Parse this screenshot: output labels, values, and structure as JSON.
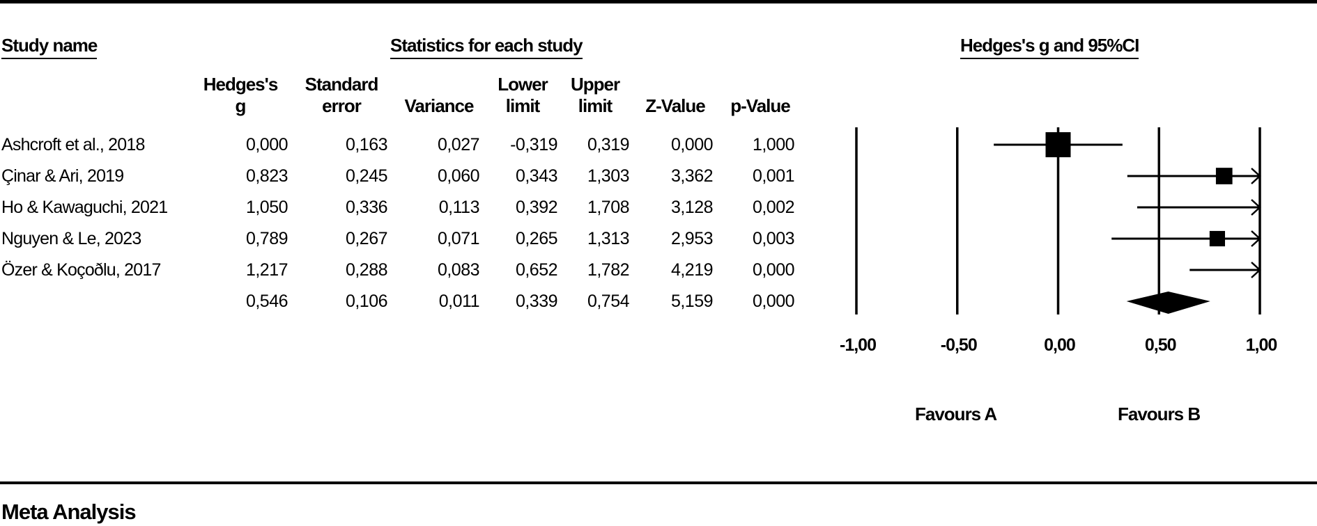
{
  "headers": {
    "study_name": "Study name",
    "statistics": "Statistics for each study",
    "plot_title": "Hedges's g and 95%CI"
  },
  "columns": [
    {
      "line1": "Hedges's",
      "line2": "g"
    },
    {
      "line1": "Standard",
      "line2": "error"
    },
    {
      "line1": "",
      "line2": "Variance"
    },
    {
      "line1": "Lower",
      "line2": "limit"
    },
    {
      "line1": "Upper",
      "line2": "limit"
    },
    {
      "line1": "",
      "line2": "Z-Value"
    },
    {
      "line1": "",
      "line2": "p-Value"
    }
  ],
  "rows": [
    {
      "name": "Ashcroft et al., 2018",
      "g": "0,000",
      "se": "0,163",
      "var": "0,027",
      "lower": "-0,319",
      "upper": "0,319",
      "z": "0,000",
      "p": "1,000"
    },
    {
      "name": "Çinar & Ari, 2019",
      "g": "0,823",
      "se": "0,245",
      "var": "0,060",
      "lower": "0,343",
      "upper": "1,303",
      "z": "3,362",
      "p": "0,001"
    },
    {
      "name": "Ho & Kawaguchi, 2021",
      "g": "1,050",
      "se": "0,336",
      "var": "0,113",
      "lower": "0,392",
      "upper": "1,708",
      "z": "3,128",
      "p": "0,002"
    },
    {
      "name": "Nguyen & Le, 2023",
      "g": "0,789",
      "se": "0,267",
      "var": "0,071",
      "lower": "0,265",
      "upper": "1,313",
      "z": "2,953",
      "p": "0,003"
    },
    {
      "name": "Özer & Koçoðlu, 2017",
      "g": "1,217",
      "se": "0,288",
      "var": "0,083",
      "lower": "0,652",
      "upper": "1,782",
      "z": "4,219",
      "p": "0,000"
    },
    {
      "name": "",
      "g": "0,546",
      "se": "0,106",
      "var": "0,011",
      "lower": "0,339",
      "upper": "0,754",
      "z": "5,159",
      "p": "0,000"
    }
  ],
  "footer": {
    "favours_a": "Favours A",
    "favours_b": "Favours B",
    "section_title": "Meta Analysis"
  },
  "chart_data": {
    "type": "forest",
    "title": "Hedges's g and 95%CI",
    "xlim": [
      -1,
      1
    ],
    "ticks": [
      -1,
      -0.5,
      0,
      0.5,
      1
    ],
    "tick_labels": [
      "-1,00",
      "-0,50",
      "0,00",
      "0,50",
      "1,00"
    ],
    "studies": [
      {
        "name": "Ashcroft et al., 2018",
        "g": 0.0,
        "lower": -0.319,
        "upper": 0.319,
        "weight": 1.0
      },
      {
        "name": "Çinar & Ari, 2019",
        "g": 0.823,
        "lower": 0.343,
        "upper": 1.303,
        "weight": 0.44
      },
      {
        "name": "Ho & Kawaguchi, 2021",
        "g": 1.05,
        "lower": 0.392,
        "upper": 1.708,
        "weight": 0.24
      },
      {
        "name": "Nguyen & Le, 2023",
        "g": 0.789,
        "lower": 0.265,
        "upper": 1.313,
        "weight": 0.37
      },
      {
        "name": "Özer & Koçoðlu, 2017",
        "g": 1.217,
        "lower": 0.652,
        "upper": 1.782,
        "weight": 0.32
      }
    ],
    "summary": {
      "g": 0.546,
      "lower": 0.339,
      "upper": 0.754
    }
  }
}
